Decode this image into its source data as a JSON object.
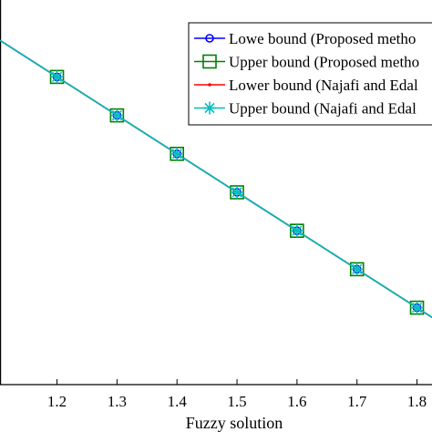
{
  "chart_data": {
    "type": "line",
    "xlabel": "Fuzzy solution",
    "ylabel": "",
    "title": "",
    "x_ticks": [
      "1.2",
      "1.3",
      "1.4",
      "1.5",
      "1.6",
      "1.7",
      "1.8"
    ],
    "xlim": [
      1.105,
      1.825
    ],
    "ylim": [
      0.0,
      1.0
    ],
    "grid": false,
    "legend_position": "top-right",
    "series": [
      {
        "name": "Lowe bound (Proposed metho",
        "color": "#0000ff",
        "marker": "circle",
        "x": [
          1.2,
          1.3,
          1.4,
          1.5,
          1.6,
          1.7,
          1.8
        ],
        "y": [
          0.8,
          0.7,
          0.6,
          0.5,
          0.4,
          0.3,
          0.2
        ]
      },
      {
        "name": "Upper bound (Proposed metho",
        "color": "#008000",
        "marker": "square",
        "x": [
          1.2,
          1.3,
          1.4,
          1.5,
          1.6,
          1.7,
          1.8
        ],
        "y": [
          0.8,
          0.7,
          0.6,
          0.5,
          0.4,
          0.3,
          0.2
        ]
      },
      {
        "name": "Lower bound (Najafi and Edal",
        "color": "#ff0000",
        "marker": "point",
        "x": [
          1.2,
          1.3,
          1.4,
          1.5,
          1.6,
          1.7,
          1.8
        ],
        "y": [
          0.8,
          0.7,
          0.6,
          0.5,
          0.4,
          0.3,
          0.2
        ]
      },
      {
        "name": "Upper bound (Najafi and Edal",
        "color": "#00bfbf",
        "marker": "asterisk",
        "x": [
          1.2,
          1.3,
          1.4,
          1.5,
          1.6,
          1.7,
          1.8
        ],
        "y": [
          0.8,
          0.7,
          0.6,
          0.5,
          0.4,
          0.3,
          0.2
        ]
      }
    ]
  }
}
